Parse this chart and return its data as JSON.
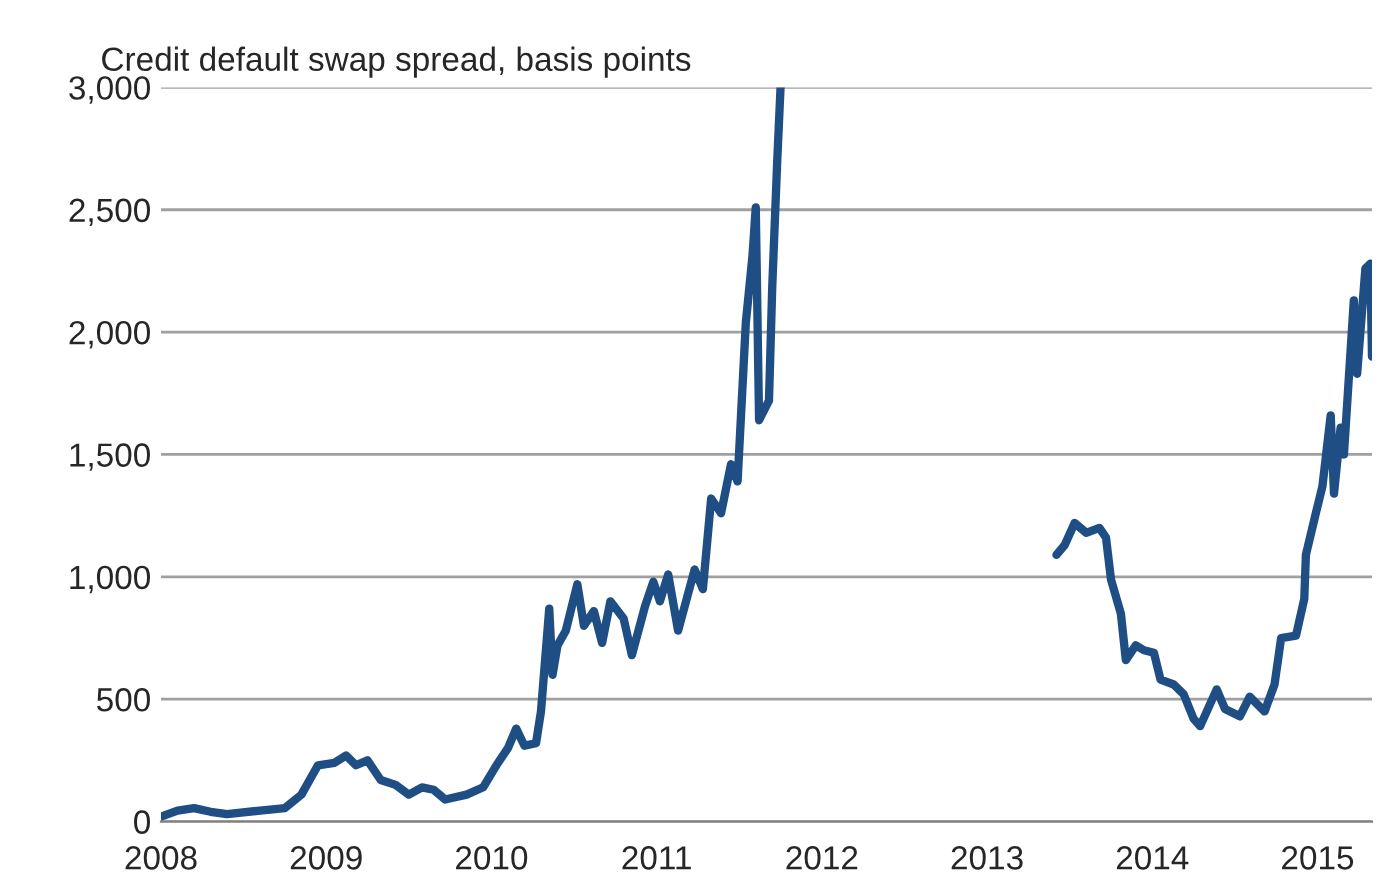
{
  "chart_data": {
    "type": "line",
    "title": "Credit default swap spread, basis points",
    "x": [
      2008.0,
      2008.1,
      2008.2,
      2008.3,
      2008.4,
      2008.6,
      2008.75,
      2008.85,
      2008.95,
      2009.05,
      2009.12,
      2009.18,
      2009.25,
      2009.33,
      2009.42,
      2009.5,
      2009.58,
      2009.65,
      2009.72,
      2009.85,
      2009.95,
      2010.03,
      2010.1,
      2010.15,
      2010.2,
      2010.27,
      2010.3,
      2010.35,
      2010.37,
      2010.4,
      2010.45,
      2010.52,
      2010.56,
      2010.62,
      2010.67,
      2010.72,
      2010.8,
      2010.85,
      2010.93,
      2010.98,
      2011.02,
      2011.07,
      2011.13,
      2011.23,
      2011.28,
      2011.33,
      2011.39,
      2011.45,
      2011.49,
      2011.54,
      2011.58,
      2011.6,
      2011.62,
      2011.68,
      2011.7,
      2011.73,
      2011.75,
      2012.5,
      2013.42,
      2013.47,
      2013.53,
      2013.6,
      2013.68,
      2013.72,
      2013.75,
      2013.81,
      2013.84,
      2013.9,
      2013.95,
      2014.01,
      2014.05,
      2014.13,
      2014.19,
      2014.25,
      2014.29,
      2014.39,
      2014.44,
      2014.53,
      2014.59,
      2014.68,
      2014.74,
      2014.78,
      2014.87,
      2014.92,
      2014.93,
      2014.99,
      2015.03,
      2015.08,
      2015.1,
      2015.14,
      2015.16,
      2015.22,
      2015.24,
      2015.29,
      2015.32,
      2015.33
    ],
    "series": [
      {
        "color": "#1f4e85",
        "values": [
          20,
          45,
          55,
          40,
          30,
          45,
          55,
          110,
          230,
          240,
          270,
          230,
          250,
          170,
          150,
          110,
          140,
          130,
          90,
          110,
          140,
          230,
          300,
          380,
          310,
          320,
          450,
          870,
          600,
          720,
          780,
          970,
          800,
          860,
          730,
          900,
          830,
          680,
          880,
          980,
          900,
          1010,
          780,
          1030,
          950,
          1320,
          1260,
          1460,
          1390,
          2040,
          2310,
          2510,
          1640,
          1720,
          2190,
          2700,
          3000,
          null,
          1090,
          1130,
          1220,
          1180,
          1200,
          1160,
          990,
          850,
          660,
          720,
          700,
          690,
          580,
          560,
          520,
          420,
          390,
          540,
          460,
          430,
          510,
          450,
          560,
          750,
          760,
          910,
          1090,
          1260,
          1370,
          1660,
          1340,
          1610,
          1500,
          2130,
          1830,
          2260,
          2280,
          1900
        ]
      }
    ],
    "xlim": [
      2008,
      2015.33
    ],
    "xticks": [
      2008,
      2009,
      2010,
      2011,
      2012,
      2013,
      2014,
      2015
    ],
    "ylim": [
      0,
      3000
    ],
    "yticks": [
      {
        "value": 0,
        "label": "0"
      },
      {
        "value": 500,
        "label": "500"
      },
      {
        "value": 1000,
        "label": "1,000"
      },
      {
        "value": 1500,
        "label": "1,500"
      },
      {
        "value": 2000,
        "label": "2,000"
      },
      {
        "value": 2500,
        "label": "2,500"
      },
      {
        "value": 3000,
        "label": "3,000"
      }
    ],
    "grid": "y",
    "legend": false
  }
}
